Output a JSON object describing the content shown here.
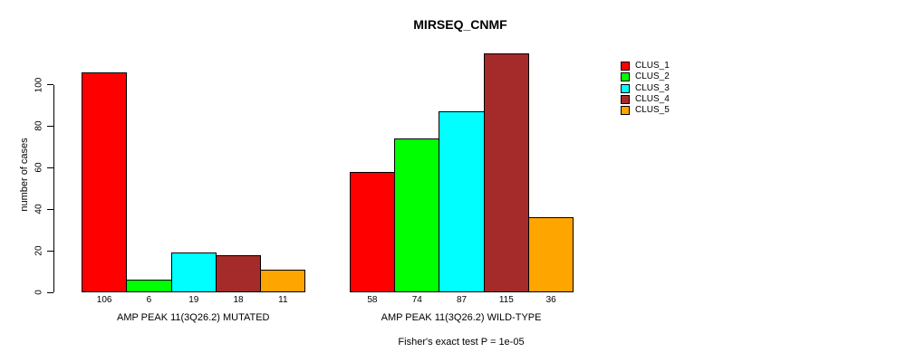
{
  "chart_data": {
    "type": "bar",
    "title": "MIRSEQ_CNMF",
    "ylabel": "number of cases",
    "xlabel": "",
    "ylim": [
      0,
      100
    ],
    "yticks": [
      0,
      20,
      40,
      60,
      80,
      100
    ],
    "grid": false,
    "legend_position": "right",
    "categories": [
      "AMP PEAK 11(3Q26.2) MUTATED",
      "AMP PEAK 11(3Q26.2) WILD-TYPE"
    ],
    "series": [
      {
        "name": "CLUS_1",
        "color": "#FF0000",
        "values": [
          106,
          58
        ]
      },
      {
        "name": "CLUS_2",
        "color": "#00FF00",
        "values": [
          6,
          74
        ]
      },
      {
        "name": "CLUS_3",
        "color": "#00FFFF",
        "values": [
          19,
          87
        ]
      },
      {
        "name": "CLUS_4",
        "color": "#A52A2A",
        "values": [
          18,
          115
        ]
      },
      {
        "name": "CLUS_5",
        "color": "#FFA500",
        "values": [
          11,
          36
        ]
      }
    ],
    "bar_value_labels": [
      [
        106,
        6,
        19,
        18,
        11
      ],
      [
        58,
        74,
        87,
        115,
        36
      ]
    ],
    "annotation": "Fisher's exact test P = 1e-05",
    "axis_color": "#000000",
    "background_color": "#FFFFFF"
  }
}
